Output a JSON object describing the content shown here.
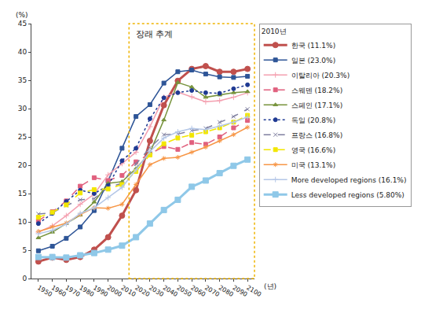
{
  "chart_data": {
    "type": "line",
    "projection_label": "장래 추계",
    "x_label": "(년)",
    "y_label": "(%)",
    "legend_title": "2010년",
    "legend": "right",
    "grid": false,
    "x": [
      1950,
      1960,
      1970,
      1980,
      1990,
      2000,
      2010,
      2020,
      2030,
      2040,
      2050,
      2060,
      2070,
      2080,
      2090,
      2100
    ],
    "xlim": [
      1945,
      2105
    ],
    "xticks": [
      1950,
      1960,
      1970,
      1980,
      1990,
      2000,
      2010,
      2020,
      2030,
      2040,
      2050,
      2060,
      2070,
      2080,
      2090,
      2100
    ],
    "ylim": [
      0,
      45
    ],
    "yticks": [
      0,
      5,
      10,
      15,
      20,
      25,
      30,
      35,
      40,
      45
    ],
    "series": [
      {
        "name": "한국",
        "legend_value": "(11.1%)",
        "color": "#c0504d",
        "marker": "circle",
        "line_style": "solid",
        "values": [
          3.0,
          3.7,
          3.3,
          3.8,
          5.1,
          7.3,
          11.1,
          15.6,
          24.3,
          30.6,
          34.9,
          37.0,
          37.5,
          36.5,
          36.5,
          37.0
        ]
      },
      {
        "name": "일본",
        "legend_value": "(23.0%)",
        "color": "#2e5597",
        "marker": "square",
        "line_style": "solid",
        "values": [
          4.9,
          5.7,
          7.1,
          9.1,
          12.0,
          17.2,
          23.0,
          28.6,
          30.7,
          34.5,
          36.5,
          36.8,
          36.1,
          35.6,
          35.5,
          35.7
        ]
      },
      {
        "name": "이탈리아",
        "legend_value": "(20.3%)",
        "color": "#f4a0b0",
        "marker": "cross",
        "line_style": "solid",
        "values": [
          8.2,
          9.3,
          11.1,
          13.1,
          14.9,
          18.3,
          20.3,
          22.3,
          26.8,
          32.0,
          32.9,
          32.1,
          31.2,
          31.4,
          32.0,
          32.8
        ]
      },
      {
        "name": "스웨덴",
        "legend_value": "(18.2%)",
        "color": "#e0607e",
        "marker": "square",
        "line_style": "dash",
        "values": [
          10.2,
          11.8,
          13.7,
          16.3,
          17.8,
          17.3,
          18.2,
          20.6,
          22.0,
          23.3,
          22.8,
          24.0,
          23.7,
          25.0,
          26.6,
          27.9
        ]
      },
      {
        "name": "스페인",
        "legend_value": "(17.1%)",
        "color": "#77933c",
        "marker": "triangle",
        "line_style": "solid",
        "values": [
          7.2,
          8.2,
          9.7,
          11.2,
          13.5,
          16.8,
          17.1,
          19.4,
          22.2,
          28.0,
          34.6,
          33.8,
          32.0,
          32.4,
          32.8,
          33.0
        ]
      },
      {
        "name": "독일",
        "legend_value": "(20.8%)",
        "color": "#1f3a93",
        "marker": "circle",
        "line_style": "dot",
        "values": [
          9.7,
          11.5,
          13.6,
          15.6,
          15.0,
          16.4,
          20.8,
          23.0,
          28.2,
          31.9,
          32.8,
          33.2,
          32.8,
          32.7,
          33.5,
          34.2
        ]
      },
      {
        "name": "프랑스",
        "legend_value": "(16.8%)",
        "color": "#7f7f9f",
        "marker": "x",
        "line_style": "dash",
        "values": [
          11.4,
          11.6,
          12.9,
          13.9,
          14.1,
          16.1,
          16.8,
          20.2,
          23.1,
          25.4,
          25.5,
          26.1,
          26.5,
          27.6,
          28.6,
          29.9
        ]
      },
      {
        "name": "영국",
        "legend_value": "(16.6%)",
        "color": "#f2e600",
        "marker": "square",
        "line_style": "dash",
        "values": [
          10.8,
          11.7,
          13.0,
          15.1,
          15.7,
          15.8,
          16.6,
          18.9,
          21.8,
          23.8,
          24.8,
          25.3,
          25.9,
          26.6,
          27.6,
          28.8
        ]
      },
      {
        "name": "미국",
        "legend_value": "(13.1%)",
        "color": "#f79646",
        "marker": "asterisk",
        "line_style": "solid",
        "values": [
          8.3,
          9.1,
          9.8,
          11.3,
          12.5,
          12.4,
          13.1,
          16.6,
          20.1,
          21.2,
          21.4,
          22.3,
          23.2,
          24.3,
          25.4,
          26.7
        ]
      },
      {
        "name": "More developed regions",
        "legend_value": "(16.1%)",
        "color": "#b4c7e7",
        "marker": "cross",
        "line_style": "solid",
        "values": [
          7.9,
          8.5,
          9.6,
          11.5,
          12.5,
          14.3,
          16.1,
          19.2,
          22.4,
          24.8,
          25.9,
          26.5,
          26.3,
          26.9,
          27.6,
          28.5
        ]
      },
      {
        "name": "Less developed regions",
        "legend_value": "(5.80%)",
        "color": "#8fc8e8",
        "marker": "square",
        "line_style": "solid",
        "values": [
          3.8,
          3.8,
          3.7,
          4.1,
          4.5,
          5.1,
          5.8,
          7.3,
          9.7,
          12.1,
          13.9,
          16.2,
          17.3,
          18.6,
          19.9,
          21.0
        ]
      }
    ]
  }
}
